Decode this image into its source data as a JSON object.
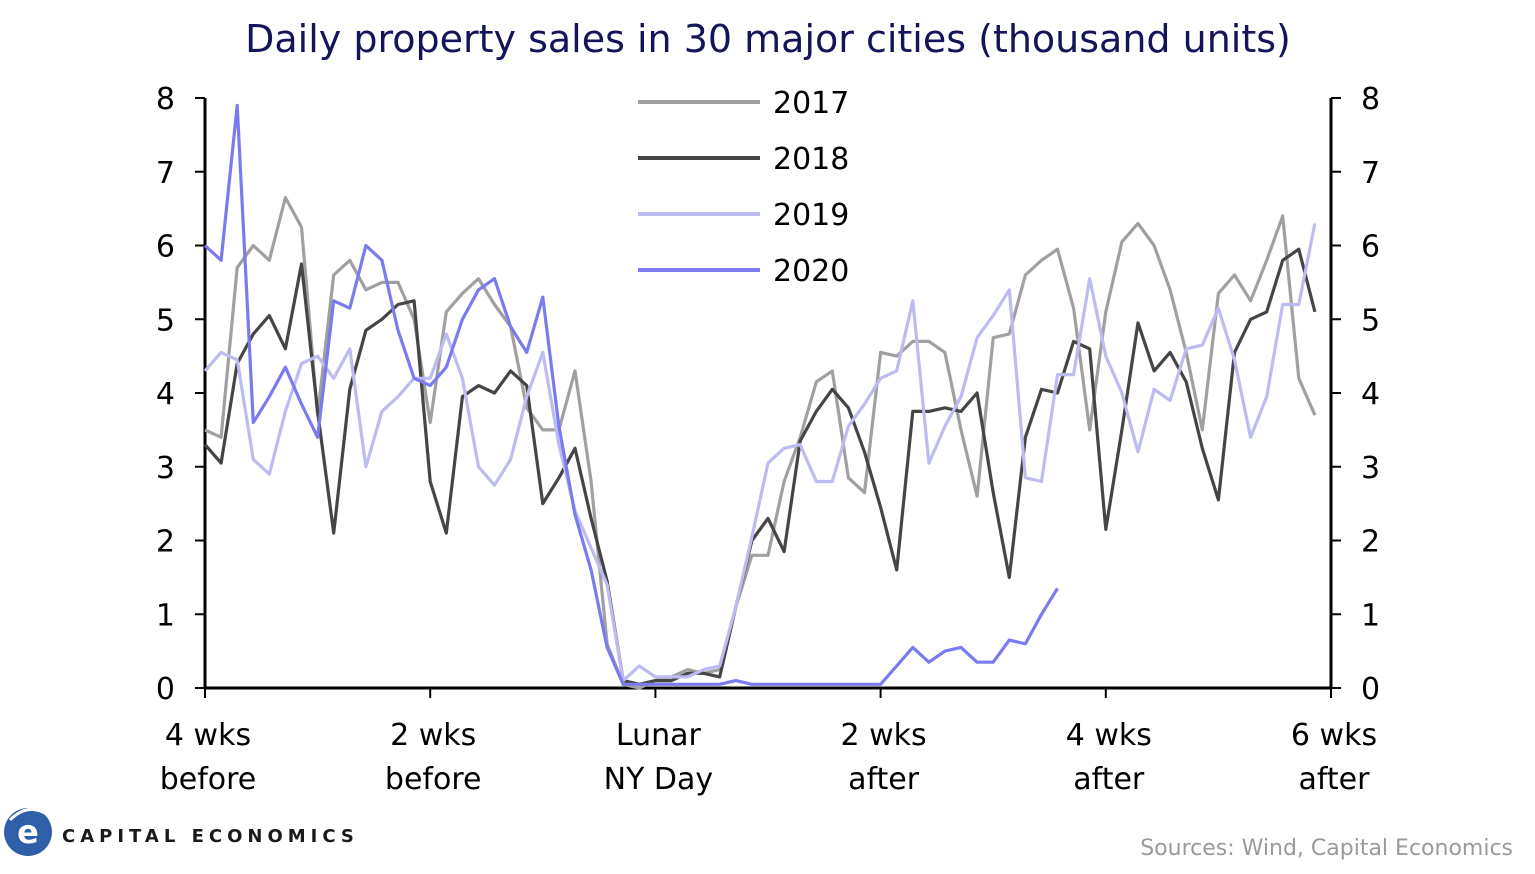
{
  "chart_data": {
    "type": "line",
    "title": "Daily property sales in 30 major cities (thousand units)",
    "ylim": [
      0,
      8
    ],
    "xlim": [
      -28,
      42
    ],
    "yticks": [
      0,
      1,
      2,
      3,
      4,
      5,
      6,
      7,
      8
    ],
    "xticks": [
      {
        "x": -28,
        "line1": "4 wks",
        "line2": "before"
      },
      {
        "x": -14,
        "line1": "2 wks",
        "line2": "before"
      },
      {
        "x": 0,
        "line1": "Lunar",
        "line2": "NY Day"
      },
      {
        "x": 14,
        "line1": "2 wks",
        "line2": "after"
      },
      {
        "x": 28,
        "line1": "4 wks",
        "line2": "after"
      },
      {
        "x": 42,
        "line1": "6 wks",
        "line2": "after"
      }
    ],
    "x_start": -28,
    "series": [
      {
        "name": "2017",
        "color": "#a0a0a0",
        "values": [
          3.5,
          3.4,
          5.7,
          6.0,
          5.8,
          6.65,
          6.25,
          3.7,
          5.6,
          5.8,
          5.4,
          5.5,
          5.5,
          5.0,
          3.6,
          5.1,
          5.35,
          5.55,
          5.2,
          4.9,
          3.8,
          3.5,
          3.5,
          4.3,
          2.8,
          0.6,
          0.05,
          0.0,
          0.1,
          0.15,
          0.25,
          0.2,
          0.25,
          1.1,
          1.8,
          1.8,
          2.8,
          3.4,
          4.15,
          4.3,
          2.85,
          2.65,
          4.55,
          4.5,
          4.7,
          4.7,
          4.55,
          3.5,
          2.6,
          4.75,
          4.8,
          5.6,
          5.8,
          5.95,
          5.15,
          3.5,
          5.1,
          6.05,
          6.3,
          6.0,
          5.4,
          4.55,
          3.5,
          5.35,
          5.6,
          5.25,
          5.8,
          6.4,
          4.2,
          3.7
        ]
      },
      {
        "name": "2018",
        "color": "#454545",
        "values": [
          3.3,
          3.05,
          4.4,
          4.8,
          5.05,
          4.6,
          5.75,
          3.75,
          2.1,
          4.05,
          4.85,
          5.0,
          5.2,
          5.25,
          2.8,
          2.1,
          3.95,
          4.1,
          4.0,
          4.3,
          4.1,
          2.5,
          2.85,
          3.25,
          2.3,
          1.45,
          0.1,
          0.05,
          0.1,
          0.1,
          0.2,
          0.2,
          0.15,
          1.1,
          2.0,
          2.3,
          1.85,
          3.35,
          3.75,
          4.05,
          3.8,
          3.2,
          2.45,
          1.6,
          3.75,
          3.75,
          3.8,
          3.75,
          4.0,
          2.65,
          1.5,
          3.4,
          4.05,
          4.0,
          4.7,
          4.6,
          2.15,
          3.5,
          4.95,
          4.3,
          4.55,
          4.15,
          3.25,
          2.55,
          4.55,
          5.0,
          5.1,
          5.8,
          5.95,
          5.1
        ]
      },
      {
        "name": "2019",
        "color": "#bcbcf2",
        "values": [
          4.3,
          4.55,
          4.45,
          3.1,
          2.9,
          3.75,
          4.4,
          4.5,
          4.2,
          4.6,
          3.0,
          3.75,
          3.95,
          4.2,
          4.2,
          4.8,
          4.2,
          3.0,
          2.75,
          3.1,
          3.95,
          4.55,
          3.3,
          2.4,
          1.9,
          1.4,
          0.1,
          0.3,
          0.15,
          0.15,
          0.15,
          0.25,
          0.3,
          1.1,
          2.05,
          3.05,
          3.25,
          3.3,
          2.8,
          2.8,
          3.55,
          3.85,
          4.2,
          4.3,
          5.25,
          3.05,
          3.55,
          3.95,
          4.75,
          5.05,
          5.4,
          2.85,
          2.8,
          4.25,
          4.25,
          5.55,
          4.5,
          4.0,
          3.2,
          4.05,
          3.9,
          4.6,
          4.65,
          5.15,
          4.45,
          3.4,
          3.95,
          5.2,
          5.2,
          6.3
        ]
      },
      {
        "name": "2020",
        "color": "#7b7bf0",
        "values": [
          6.0,
          5.8,
          7.9,
          3.6,
          3.95,
          4.35,
          3.85,
          3.4,
          5.25,
          5.15,
          6.0,
          5.8,
          4.85,
          4.2,
          4.1,
          4.35,
          5.0,
          5.4,
          5.55,
          4.9,
          4.55,
          5.3,
          3.55,
          2.35,
          1.6,
          0.55,
          0.05,
          0.05,
          0.05,
          0.05,
          0.05,
          0.05,
          0.05,
          0.1,
          0.05,
          0.05,
          0.05,
          0.05,
          0.05,
          0.05,
          0.05,
          0.05,
          0.05,
          0.3,
          0.55,
          0.35,
          0.5,
          0.55,
          0.35,
          0.35,
          0.65,
          0.6,
          1.0,
          1.35
        ]
      }
    ]
  },
  "source_text": "Sources: Wind, Capital Economics",
  "brand_text": "CAPITAL ECONOMICS",
  "logo_letter": "e",
  "logo_color": "#2f5fa8"
}
